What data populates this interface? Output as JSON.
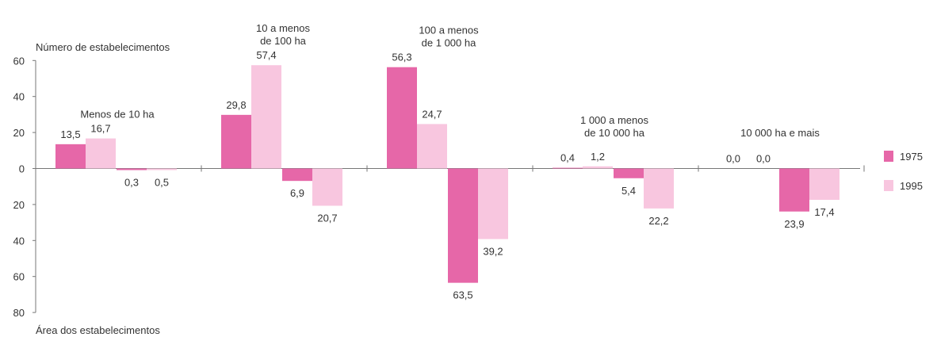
{
  "chart_data": {
    "type": "bar",
    "y_title_top": "Número de estabelecimentos",
    "y_title_bottom": "Área dos estabelecimentos",
    "ylim": [
      -80,
      60
    ],
    "yticks": [
      {
        "value": 60,
        "label": "60"
      },
      {
        "value": 40,
        "label": "40"
      },
      {
        "value": 20,
        "label": "20"
      },
      {
        "value": 0,
        "label": "0"
      },
      {
        "value": -20,
        "label": "20"
      },
      {
        "value": -40,
        "label": "40"
      },
      {
        "value": -60,
        "label": "60"
      },
      {
        "value": -80,
        "label": "80"
      }
    ],
    "colors": {
      "1975": "#e667a8",
      "1995": "#f8c6df",
      "axis": "#777777"
    },
    "series": [
      {
        "name": "1975",
        "key": "s1975"
      },
      {
        "name": "1995",
        "key": "s1995"
      }
    ],
    "groups": [
      {
        "label_lines": [
          "Menos de 10 ha"
        ],
        "numero": {
          "s1975": 13.5,
          "s1995": 16.7
        },
        "numero_labels": {
          "s1975": "13,5",
          "s1995": "16,7"
        },
        "area": {
          "s1975": -0.3,
          "s1995": -0.5
        },
        "area_labels": {
          "s1975": "0,3",
          "s1995": "0,5"
        }
      },
      {
        "label_lines": [
          "10 a menos",
          "de 100 ha"
        ],
        "numero": {
          "s1975": 29.8,
          "s1995": 57.4
        },
        "numero_labels": {
          "s1975": "29,8",
          "s1995": "57,4"
        },
        "area": {
          "s1975": -6.9,
          "s1995": -20.7
        },
        "area_labels": {
          "s1975": "6,9",
          "s1995": "20,7"
        }
      },
      {
        "label_lines": [
          "100 a menos",
          "de 1 000 ha"
        ],
        "numero": {
          "s1975": 56.3,
          "s1995": 24.7
        },
        "numero_labels": {
          "s1975": "56,3",
          "s1995": "24,7"
        },
        "area": {
          "s1975": -63.5,
          "s1995": -39.2
        },
        "area_labels": {
          "s1975": "63,5",
          "s1995": "39,2"
        }
      },
      {
        "label_lines": [
          "1 000 a menos",
          "de 10 000 ha"
        ],
        "numero": {
          "s1975": 0.4,
          "s1995": 1.2
        },
        "numero_labels": {
          "s1975": "0,4",
          "s1995": "1,2"
        },
        "area": {
          "s1975": -5.4,
          "s1995": -22.2
        },
        "area_labels": {
          "s1975": "5,4",
          "s1995": "22,2"
        }
      },
      {
        "label_lines": [
          "10 000 ha e mais"
        ],
        "numero": {
          "s1975": 0.0,
          "s1995": 0.0
        },
        "numero_labels": {
          "s1975": "0,0",
          "s1995": "0,0"
        },
        "area": {
          "s1975": -23.9,
          "s1995": -17.4
        },
        "area_labels": {
          "s1975": "23,9",
          "s1995": "17,4"
        }
      }
    ]
  }
}
